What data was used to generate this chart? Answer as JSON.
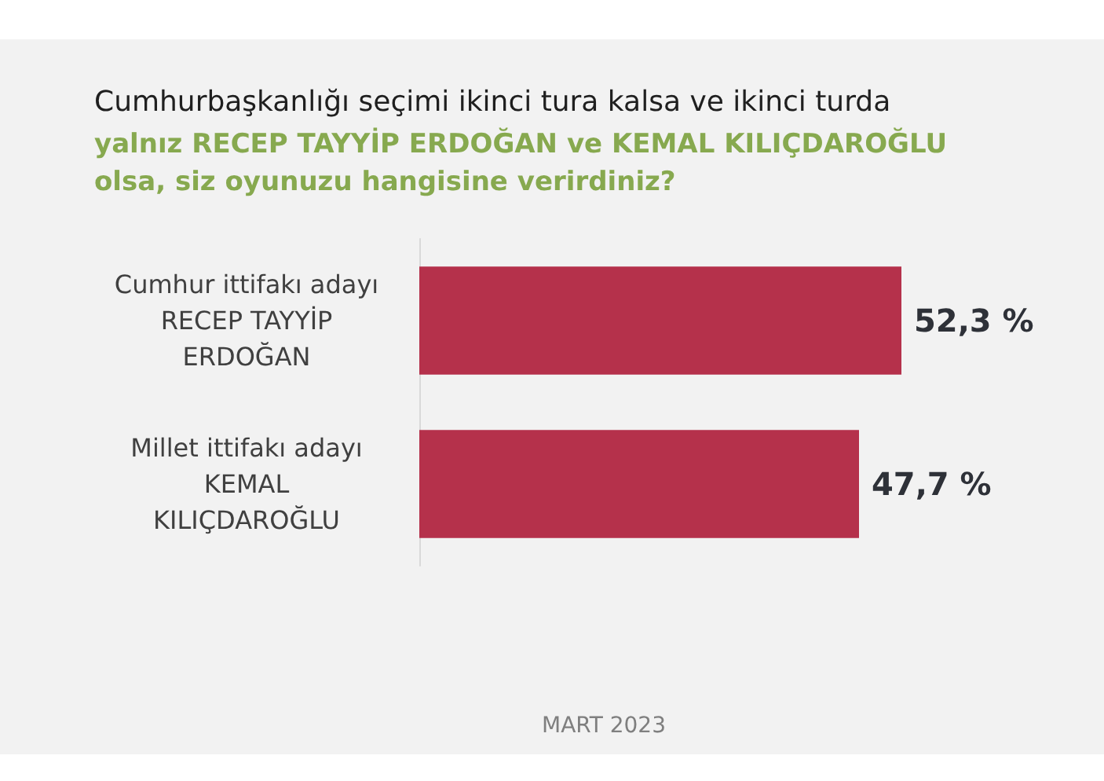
{
  "chart_data": {
    "type": "bar",
    "orientation": "horizontal",
    "title": "Cumhurbaşkanlığı seçimi ikinci tura kalsa ve ikinci turda",
    "subtitle": "yalnız RECEP TAYYİP ERDOĞAN ve KEMAL KILIÇDAROĞLU olsa, siz oyunuzu hangisine verirdiniz?",
    "categories": [
      "Cumhur ittifakı adayı\nRECEP TAYYİP\nERDOĞAN",
      "Millet ittifakı adayı\nKEMAL\nKILIÇDAROĞLU"
    ],
    "values": [
      52.3,
      47.7
    ],
    "color": "#b5314b",
    "value_labels": [
      "52,3 %",
      "47,7 %"
    ],
    "annotations": [
      "MART 2023"
    ]
  }
}
